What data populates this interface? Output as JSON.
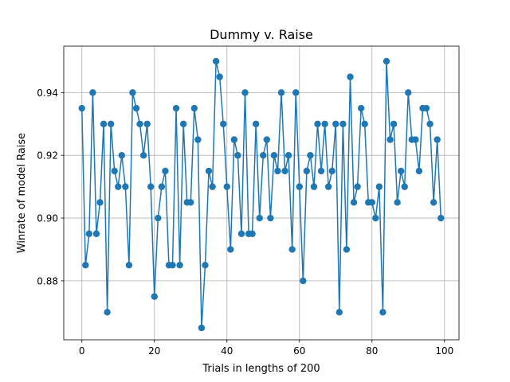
{
  "chart_data": {
    "type": "line",
    "title": "Dummy v. Raise",
    "xlabel": "Trials in lengths of 200",
    "ylabel": "Winrate of model Raise",
    "xlim": [
      -5,
      104
    ],
    "ylim": [
      0.8612,
      0.9548
    ],
    "x_ticks": [
      0,
      20,
      40,
      60,
      80,
      100
    ],
    "x_tick_labels": [
      "0",
      "20",
      "40",
      "60",
      "80",
      "100"
    ],
    "y_ticks": [
      0.88,
      0.9,
      0.92,
      0.94
    ],
    "y_tick_labels": [
      "0.88",
      "0.90",
      "0.92",
      "0.94"
    ],
    "grid": true,
    "marker": "circle",
    "color": "#1f77b4",
    "series": [
      {
        "x": [
          0,
          1,
          2,
          3,
          4,
          5,
          6,
          7,
          8,
          9,
          10,
          11,
          12,
          13,
          14,
          15,
          16,
          17,
          18,
          19,
          20,
          21,
          22,
          23,
          24,
          25,
          26,
          27,
          28,
          29,
          30,
          31,
          32,
          33,
          34,
          35,
          36,
          37,
          38,
          39,
          40,
          41,
          42,
          43,
          44,
          45,
          46,
          47,
          48,
          49,
          50,
          51,
          52,
          53,
          54,
          55,
          56,
          57,
          58,
          59,
          60,
          61,
          62,
          63,
          64,
          65,
          66,
          67,
          68,
          69,
          70,
          71,
          72,
          73,
          74,
          75,
          76,
          77,
          78,
          79,
          80,
          81,
          82,
          83,
          84,
          85,
          86,
          87,
          88,
          89,
          90,
          91,
          92,
          93,
          94,
          95,
          96,
          97,
          98,
          99
        ],
        "values": [
          0.935,
          0.885,
          0.895,
          0.94,
          0.895,
          0.905,
          0.93,
          0.87,
          0.93,
          0.915,
          0.91,
          0.92,
          0.91,
          0.885,
          0.94,
          0.935,
          0.93,
          0.92,
          0.93,
          0.91,
          0.875,
          0.9,
          0.91,
          0.915,
          0.885,
          0.885,
          0.935,
          0.885,
          0.93,
          0.905,
          0.905,
          0.935,
          0.925,
          0.865,
          0.885,
          0.915,
          0.91,
          0.95,
          0.945,
          0.93,
          0.91,
          0.89,
          0.925,
          0.92,
          0.895,
          0.94,
          0.895,
          0.895,
          0.93,
          0.9,
          0.92,
          0.925,
          0.9,
          0.92,
          0.915,
          0.94,
          0.915,
          0.92,
          0.89,
          0.94,
          0.91,
          0.88,
          0.915,
          0.92,
          0.91,
          0.93,
          0.915,
          0.93,
          0.91,
          0.915,
          0.93,
          0.87,
          0.93,
          0.89,
          0.945,
          0.905,
          0.91,
          0.935,
          0.93,
          0.905,
          0.905,
          0.9,
          0.91,
          0.87,
          0.95,
          0.925,
          0.93,
          0.905,
          0.915,
          0.91,
          0.94,
          0.925,
          0.925,
          0.915,
          0.935,
          0.935,
          0.93,
          0.905,
          0.925,
          0.9
        ]
      }
    ]
  }
}
